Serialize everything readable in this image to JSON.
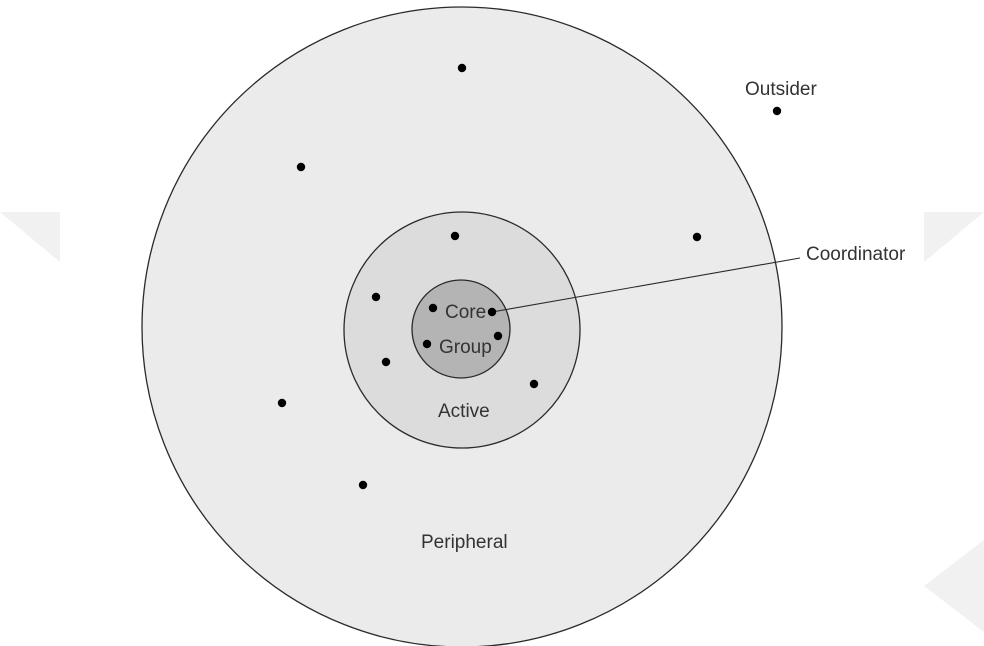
{
  "labels": {
    "outsider": "Outsider",
    "coordinator": "Coordinator",
    "core_line1": "Core",
    "core_line2": "Group",
    "active": "Active",
    "peripheral": "Peripheral"
  },
  "colors": {
    "peripheral_fill": "#ebebeb",
    "active_fill": "#dcdcdc",
    "core_fill": "#b4b4b4",
    "stroke": "#2a2a2a",
    "dot": "#000000",
    "corner_shape": "#f1f1f1"
  }
}
